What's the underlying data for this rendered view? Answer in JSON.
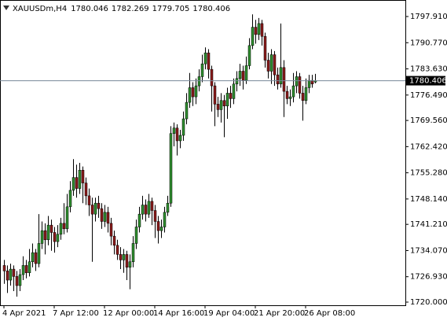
{
  "chart_data": {
    "type": "candlestick",
    "title": "XAUUSDm,H4",
    "categories": [
      "4 Apr 2021",
      null,
      null,
      null,
      null,
      null,
      null,
      null,
      null,
      null,
      null,
      null,
      null,
      null,
      null,
      null,
      "7 Apr 12:00",
      null,
      null,
      null,
      null,
      null,
      null,
      null,
      null,
      null,
      null,
      null,
      null,
      null,
      null,
      null,
      "12 Apr 00:00",
      null,
      null,
      null,
      null,
      null,
      null,
      null,
      null,
      null,
      null,
      null,
      null,
      null,
      null,
      null,
      "14 Apr 16:00",
      null,
      null,
      null,
      null,
      null,
      null,
      null,
      null,
      null,
      null,
      null,
      null,
      null,
      null,
      null,
      "19 Apr 04:00",
      null,
      null,
      null,
      null,
      null,
      null,
      null,
      null,
      null,
      null,
      null,
      null,
      null,
      null,
      null,
      "21 Apr 20:00",
      null,
      null,
      null,
      null,
      null,
      null,
      null,
      null,
      null,
      null,
      null,
      null,
      null,
      null,
      null,
      "26 Apr 08:00",
      null,
      null,
      null
    ],
    "series": {
      "open": [
        1730.0,
        1728.5,
        1726.0,
        1729.0,
        1727.0,
        1724.5,
        1727.5,
        1730.0,
        1728.0,
        1731.0,
        1733.5,
        1730.5,
        1736.0,
        1739.5,
        1737.0,
        1741.0,
        1739.0,
        1736.5,
        1738.5,
        1741.5,
        1740.0,
        1746.0,
        1750.5,
        1754.0,
        1751.0,
        1756.0,
        1752.5,
        1749.0,
        1746.5,
        1744.0,
        1747.0,
        1745.5,
        1742.0,
        1744.5,
        1741.5,
        1738.0,
        1735.5,
        1733.0,
        1731.5,
        1733.0,
        1729.5,
        1731.0,
        1736.0,
        1740.5,
        1744.0,
        1746.5,
        1744.0,
        1747.5,
        1745.0,
        1742.0,
        1739.5,
        1740.5,
        1744.5,
        1747.0,
        1766.0,
        1767.5,
        1764.0,
        1765.5,
        1770.0,
        1774.5,
        1778.5,
        1776.0,
        1779.0,
        1781.5,
        1785.0,
        1788.0,
        1783.5,
        1779.0,
        1774.0,
        1772.5,
        1775.0,
        1773.5,
        1777.0,
        1775.5,
        1779.5,
        1781.0,
        1783.0,
        1780.5,
        1784.5,
        1790.0,
        1795.0,
        1793.0,
        1796.0,
        1792.5,
        1786.0,
        1783.0,
        1787.5,
        1782.0,
        1779.5,
        1784.0,
        1777.5,
        1775.5,
        1776.0,
        1779.0,
        1781.5,
        1777.0,
        1775.0,
        1778.5,
        1780.5,
        1780.046
      ],
      "high": [
        1731.5,
        1730.0,
        1730.5,
        1730.0,
        1728.5,
        1729.0,
        1732.5,
        1731.5,
        1734.5,
        1736.0,
        1734.5,
        1744.0,
        1742.0,
        1741.5,
        1743.5,
        1742.5,
        1740.5,
        1741.0,
        1743.0,
        1747.0,
        1749.5,
        1753.0,
        1759.0,
        1757.5,
        1758.0,
        1757.0,
        1754.0,
        1751.0,
        1748.5,
        1748.5,
        1749.0,
        1747.0,
        1746.5,
        1746.0,
        1743.0,
        1739.5,
        1737.0,
        1735.0,
        1734.5,
        1734.0,
        1733.0,
        1738.0,
        1742.5,
        1746.0,
        1749.0,
        1748.0,
        1749.5,
        1748.5,
        1746.5,
        1743.5,
        1742.5,
        1746.0,
        1749.0,
        1768.0,
        1769.0,
        1768.5,
        1767.0,
        1772.0,
        1777.0,
        1782.5,
        1780.0,
        1781.0,
        1783.5,
        1787.5,
        1789.5,
        1789.0,
        1784.5,
        1780.0,
        1776.0,
        1777.0,
        1776.5,
        1778.5,
        1779.0,
        1781.0,
        1783.0,
        1785.0,
        1784.5,
        1787.0,
        1792.0,
        1798.5,
        1797.0,
        1797.5,
        1797.0,
        1793.5,
        1788.0,
        1789.0,
        1788.5,
        1784.0,
        1796.0,
        1786.0,
        1779.0,
        1778.0,
        1782.5,
        1783.0,
        1782.5,
        1779.0,
        1781.0,
        1782.0,
        1782.0,
        1782.269
      ],
      "low": [
        1725.0,
        1722.5,
        1724.5,
        1723.0,
        1721.5,
        1723.0,
        1726.0,
        1726.5,
        1727.0,
        1729.5,
        1728.5,
        1729.5,
        1734.5,
        1733.0,
        1735.5,
        1734.0,
        1733.5,
        1735.0,
        1737.0,
        1738.5,
        1739.0,
        1744.5,
        1749.0,
        1748.5,
        1749.5,
        1747.0,
        1746.5,
        1743.5,
        1731.0,
        1742.0,
        1743.0,
        1740.0,
        1740.5,
        1739.0,
        1735.5,
        1733.0,
        1731.5,
        1729.0,
        1728.0,
        1726.0,
        1723.5,
        1729.5,
        1734.5,
        1739.0,
        1742.5,
        1742.0,
        1743.0,
        1741.0,
        1737.5,
        1736.0,
        1737.5,
        1739.0,
        1743.5,
        1746.0,
        1762.5,
        1760.0,
        1762.0,
        1764.0,
        1768.5,
        1773.0,
        1773.5,
        1774.0,
        1777.5,
        1780.0,
        1783.5,
        1781.0,
        1772.0,
        1768.0,
        1770.5,
        1769.0,
        1765.0,
        1770.0,
        1773.0,
        1774.0,
        1777.5,
        1779.0,
        1778.0,
        1779.5,
        1783.5,
        1789.0,
        1790.5,
        1791.5,
        1790.0,
        1784.0,
        1781.0,
        1779.5,
        1779.0,
        1778.0,
        1778.5,
        1770.5,
        1774.0,
        1773.5,
        1774.5,
        1777.0,
        1775.5,
        1769.5,
        1774.0,
        1777.0,
        1778.5,
        1779.705
      ],
      "close": [
        1728.5,
        1726.0,
        1729.0,
        1727.0,
        1724.5,
        1727.5,
        1730.0,
        1728.0,
        1731.0,
        1733.5,
        1730.5,
        1736.0,
        1739.5,
        1737.0,
        1741.0,
        1739.0,
        1736.5,
        1738.5,
        1741.5,
        1740.0,
        1746.0,
        1750.5,
        1754.0,
        1751.0,
        1756.0,
        1752.5,
        1749.0,
        1746.5,
        1744.0,
        1747.0,
        1745.5,
        1742.0,
        1744.5,
        1741.5,
        1738.0,
        1735.5,
        1733.0,
        1731.5,
        1733.0,
        1729.5,
        1731.0,
        1736.0,
        1740.5,
        1744.0,
        1746.5,
        1744.0,
        1747.5,
        1745.0,
        1742.0,
        1739.5,
        1740.5,
        1744.5,
        1747.0,
        1766.0,
        1767.5,
        1764.0,
        1765.5,
        1770.0,
        1774.5,
        1778.5,
        1776.0,
        1779.0,
        1781.5,
        1785.0,
        1788.0,
        1783.5,
        1779.0,
        1774.0,
        1772.5,
        1775.0,
        1773.5,
        1777.0,
        1775.5,
        1779.5,
        1781.0,
        1783.0,
        1780.5,
        1784.5,
        1790.0,
        1795.0,
        1793.0,
        1796.0,
        1792.5,
        1786.0,
        1783.0,
        1787.5,
        1782.0,
        1779.5,
        1784.0,
        1777.5,
        1775.5,
        1776.0,
        1779.0,
        1781.5,
        1777.0,
        1775.0,
        1778.5,
        1780.5,
        1779.5,
        1780.406
      ]
    },
    "up_color": "#2f8f2f",
    "down_color": "#8b1a1a",
    "wick_color": "#000000",
    "price_line_color": "#778899",
    "ylim": [
      1719.14,
      1802.42
    ],
    "yticks": [
      {
        "value": 1720.0,
        "label": "1720.000"
      },
      {
        "value": 1726.93,
        "label": "1726.930"
      },
      {
        "value": 1734.07,
        "label": "1734.070"
      },
      {
        "value": 1741.21,
        "label": "1741.210"
      },
      {
        "value": 1748.14,
        "label": "1748.140"
      },
      {
        "value": 1755.28,
        "label": "1755.280"
      },
      {
        "value": 1762.42,
        "label": "1762.420"
      },
      {
        "value": 1769.56,
        "label": "1769.560"
      },
      {
        "value": 1776.49,
        "label": "1776.490"
      },
      {
        "value": 1783.63,
        "label": "1783.630"
      },
      {
        "value": 1790.77,
        "label": "1790.770"
      },
      {
        "value": 1797.91,
        "label": "1797.910"
      }
    ],
    "grid": false
  }
}
